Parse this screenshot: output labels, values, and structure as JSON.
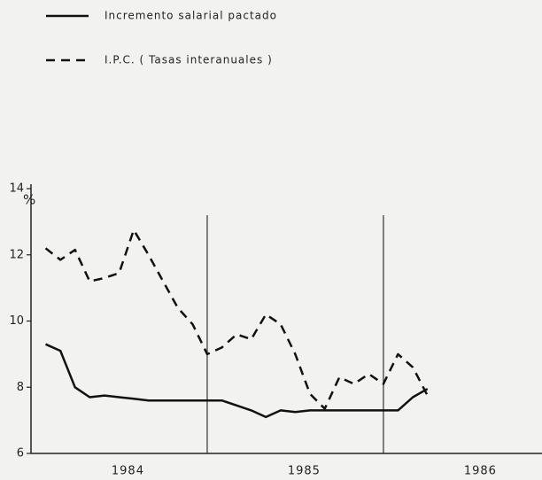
{
  "chart_data": {
    "type": "line",
    "legend": [
      "Incremento salarial pactado",
      "I.P.C. ( Tasas interanuales )"
    ],
    "ylabel": "%",
    "x": [
      1984.083,
      1984.167,
      1984.25,
      1984.333,
      1984.417,
      1984.5,
      1984.583,
      1984.667,
      1984.75,
      1984.833,
      1984.917,
      1985.0,
      1985.083,
      1985.167,
      1985.25,
      1985.333,
      1985.417,
      1985.5,
      1985.583,
      1985.667,
      1985.75,
      1985.833,
      1985.917,
      1986.0,
      1986.083,
      1986.167,
      1986.25
    ],
    "series": [
      {
        "name": "Incremento salarial pactado",
        "color": "#111111",
        "dash": false,
        "values": [
          9.3,
          9.1,
          8.0,
          7.7,
          7.75,
          7.7,
          7.65,
          7.6,
          7.6,
          7.6,
          7.6,
          7.6,
          7.6,
          7.45,
          7.3,
          7.1,
          7.3,
          7.25,
          7.3,
          7.3,
          7.3,
          7.3,
          7.3,
          7.3,
          7.3,
          7.7,
          7.95
        ]
      },
      {
        "name": "I.P.C. ( Tasas interanuales )",
        "color": "#111111",
        "dash": true,
        "values": [
          12.2,
          11.85,
          12.15,
          11.2,
          11.3,
          11.45,
          12.75,
          12.0,
          11.2,
          10.4,
          9.9,
          9.0,
          9.2,
          9.6,
          9.45,
          10.2,
          9.9,
          9.0,
          7.8,
          7.35,
          8.3,
          8.1,
          8.4,
          8.1,
          9.0,
          8.6,
          7.75
        ]
      }
    ],
    "xlim": [
      1984.0,
      1986.9
    ],
    "xticks": [
      {
        "value": 1984.55,
        "label": "1984"
      },
      {
        "value": 1985.55,
        "label": "1985"
      },
      {
        "value": 1986.55,
        "label": "1986"
      }
    ],
    "year_dividers": [
      1985.0,
      1986.0
    ],
    "ylim": [
      6,
      14
    ],
    "yticks": [
      6,
      8,
      10,
      12,
      14
    ]
  }
}
